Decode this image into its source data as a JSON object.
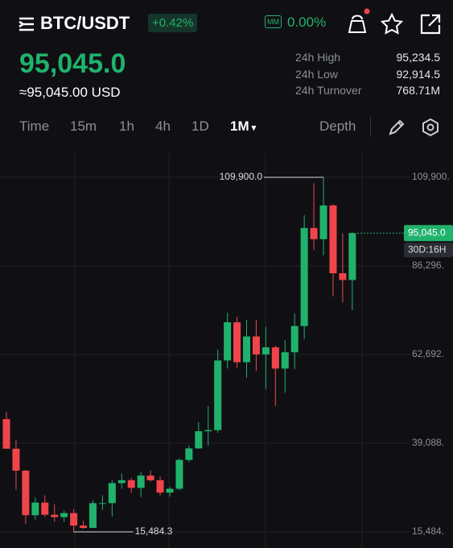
{
  "header": {
    "pair": "BTC/USDT",
    "change": "+0.42%",
    "mm_badge": "MM",
    "mm_value": "0.00%"
  },
  "price": {
    "last": "95,045.0",
    "usd": "≈95,045.00 USD"
  },
  "stats": [
    {
      "label": "24h High",
      "value": "95,234.5"
    },
    {
      "label": "24h Low",
      "value": "92,914.5"
    },
    {
      "label": "24h Turnover",
      "value": "768.71M"
    }
  ],
  "tabs": {
    "items": [
      "Time",
      "15m",
      "1h",
      "4h",
      "1D",
      "1M"
    ],
    "active": 5,
    "depth": "Depth"
  },
  "chart_data": {
    "type": "candlestick",
    "open": [
      45510,
      37630,
      31790,
      19930,
      23290,
      20050,
      19420,
      20490,
      17160,
      16540,
      23130,
      23140,
      28470,
      29250,
      27210,
      30470,
      29230,
      25940,
      26970,
      34650,
      37720,
      42280,
      42580,
      61130,
      71300,
      60660,
      67520,
      62760,
      64620,
      58970,
      63300,
      70290,
      96410,
      93420,
      102410,
      84350,
      82550
    ],
    "high": [
      47450,
      40000,
      31990,
      24670,
      25210,
      22800,
      21090,
      21480,
      18390,
      23960,
      25250,
      29190,
      31000,
      29830,
      31430,
      31800,
      30200,
      27480,
      35000,
      38450,
      44730,
      48970,
      64000,
      73780,
      72780,
      71980,
      71990,
      70080,
      65100,
      66500,
      73620,
      99800,
      108350,
      109900,
      102750,
      95000,
      95234.5
    ],
    "low": [
      37700,
      26700,
      17600,
      18780,
      19520,
      18150,
      18180,
      15484.3,
      16250,
      16500,
      21350,
      19550,
      26940,
      25810,
      24750,
      28860,
      25170,
      24900,
      26540,
      34100,
      37600,
      38500,
      41880,
      59000,
      59200,
      56550,
      58400,
      53550,
      49000,
      52550,
      58870,
      66800,
      90500,
      89160,
      78180,
      76600,
      74500
    ],
    "close": [
      37630,
      31790,
      19930,
      23290,
      20050,
      19420,
      20490,
      17160,
      16540,
      23130,
      23140,
      28470,
      29250,
      27210,
      30470,
      29230,
      25940,
      26970,
      34650,
      37720,
      42280,
      42580,
      61130,
      71300,
      60660,
      67520,
      62760,
      64620,
      58970,
      63300,
      70290,
      96410,
      93420,
      102410,
      84350,
      82550,
      95045.0
    ],
    "up_color": "#20b26c",
    "down_color": "#ef454a",
    "ylim": [
      11192,
      116338
    ],
    "yticks": [
      {
        "value": 15484,
        "label": "15,484."
      },
      {
        "value": 39088,
        "label": "39,088."
      },
      {
        "value": 62692,
        "label": "62,692."
      },
      {
        "value": 86296,
        "label": "86,296."
      },
      {
        "value": 109900,
        "label": "109,900."
      }
    ],
    "grid": true,
    "max_marker": {
      "value": 109900,
      "label": "109,900.0"
    },
    "min_marker": {
      "value": 15484.3,
      "label": "15,484.3"
    },
    "last_price": {
      "value": 95045.0,
      "label": "95,045.0"
    },
    "countdown": "30D:16H"
  }
}
